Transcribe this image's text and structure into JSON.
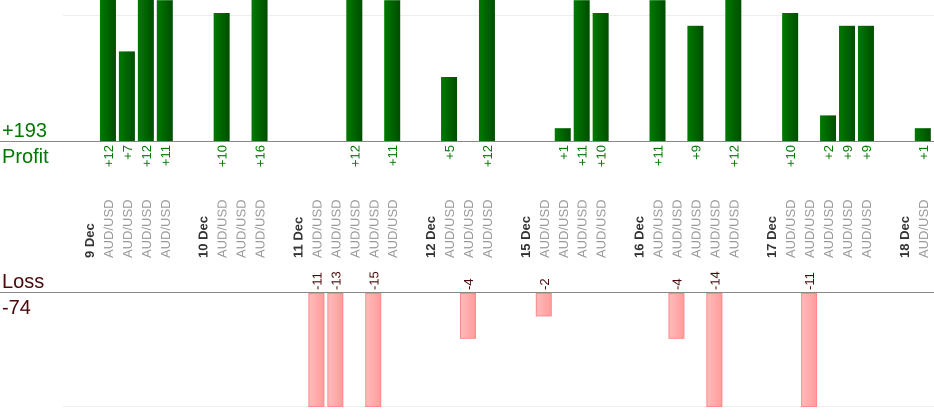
{
  "chart_data": {
    "type": "bar",
    "title": "",
    "profit_label": "Profit",
    "profit_total": "+193",
    "loss_label": "Loss",
    "loss_total": "-74",
    "profit_axis_max": 11,
    "loss_axis_max": 10,
    "colors": {
      "profit": "#006600",
      "profit_text": "#007700",
      "loss": "#ffaaaa",
      "loss_stroke": "#ff8888",
      "loss_text": "#4a0a0a",
      "date": "#333333",
      "symbol": "#999999"
    },
    "days": [
      {
        "date": "9 Dec",
        "trades": [
          {
            "symbol": "AUD/USD",
            "value": 12
          },
          {
            "symbol": "AUD/USD",
            "value": 7
          },
          {
            "symbol": "AUD/USD",
            "value": 12
          },
          {
            "symbol": "AUD/USD",
            "value": 11
          }
        ]
      },
      {
        "date": "10 Dec",
        "trades": [
          {
            "symbol": "AUD/USD",
            "value": 10
          },
          {
            "symbol": "AUD/USD",
            "value": null
          },
          {
            "symbol": "AUD/USD",
            "value": 16
          }
        ]
      },
      {
        "date": "11 Dec",
        "trades": [
          {
            "symbol": "AUD/USD",
            "value": -11
          },
          {
            "symbol": "AUD/USD",
            "value": -13
          },
          {
            "symbol": "AUD/USD",
            "value": 12
          },
          {
            "symbol": "AUD/USD",
            "value": -15
          },
          {
            "symbol": "AUD/USD",
            "value": 11
          }
        ]
      },
      {
        "date": "12 Dec",
        "trades": [
          {
            "symbol": "AUD/USD",
            "value": 5
          },
          {
            "symbol": "AUD/USD",
            "value": -4
          },
          {
            "symbol": "AUD/USD",
            "value": 12
          }
        ]
      },
      {
        "date": "15 Dec",
        "trades": [
          {
            "symbol": "AUD/USD",
            "value": -2
          },
          {
            "symbol": "AUD/USD",
            "value": 1
          },
          {
            "symbol": "AUD/USD",
            "value": 11
          },
          {
            "symbol": "AUD/USD",
            "value": 10
          }
        ]
      },
      {
        "date": "16 Dec",
        "trades": [
          {
            "symbol": "AUD/USD",
            "value": 11
          },
          {
            "symbol": "AUD/USD",
            "value": -4
          },
          {
            "symbol": "AUD/USD",
            "value": 9
          },
          {
            "symbol": "AUD/USD",
            "value": -14
          },
          {
            "symbol": "AUD/USD",
            "value": 12
          }
        ]
      },
      {
        "date": "17 Dec",
        "trades": [
          {
            "symbol": "AUD/USD",
            "value": 10
          },
          {
            "symbol": "AUD/USD",
            "value": -11
          },
          {
            "symbol": "AUD/USD",
            "value": 2
          },
          {
            "symbol": "AUD/USD",
            "value": 9
          },
          {
            "symbol": "AUD/USD",
            "value": 9
          }
        ]
      },
      {
        "date": "18 Dec",
        "trades": [
          {
            "symbol": "AUD/USD",
            "value": 1
          }
        ]
      }
    ]
  }
}
